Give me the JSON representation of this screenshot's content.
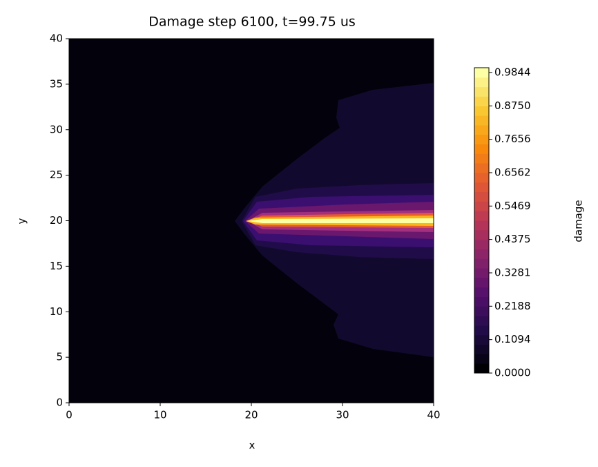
{
  "chart_data": {
    "type": "contour",
    "title": "Damage step 6100, t=99.75 us",
    "x_label": "x",
    "y_label": "y",
    "colorbar_label": "damage",
    "colormap": "inferno",
    "xlim": [
      0,
      40
    ],
    "xticks": [
      0,
      10,
      20,
      30,
      40
    ],
    "ylim": [
      0,
      40
    ],
    "yticks": [
      0,
      5,
      10,
      15,
      20,
      25,
      30,
      35,
      40
    ],
    "zlim": [
      0,
      1.0
    ],
    "zticks": [
      {
        "value": 0,
        "label": "0.0000"
      },
      0.1094,
      0.2188,
      0.3281,
      0.4375,
      0.5469,
      0.6562,
      0.7656,
      {
        "value": 0.875,
        "label": "0.8750"
      },
      0.9844
    ]
  }
}
